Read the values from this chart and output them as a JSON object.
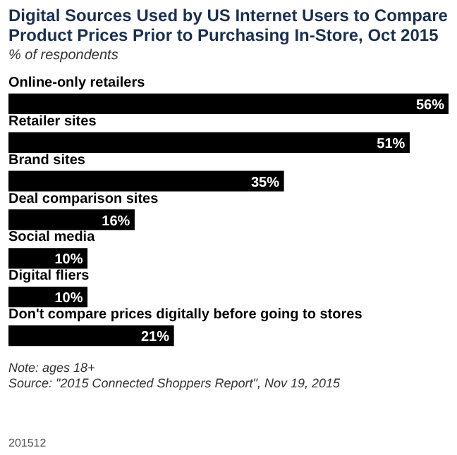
{
  "chart_data": {
    "type": "bar",
    "orientation": "horizontal",
    "title": "Digital Sources Used by US Internet Users to Compare Product Prices Prior to Purchasing In-Store, Oct 2015",
    "subtitle": "% of respondents",
    "categories": [
      "Online-only retailers",
      "Retailer sites",
      "Brand sites",
      "Deal comparison sites",
      "Social media",
      "Digital fliers",
      "Don't compare prices digitally before going to stores"
    ],
    "values": [
      56,
      51,
      35,
      16,
      10,
      10,
      21
    ],
    "value_labels": [
      "56%",
      "51%",
      "35%",
      "16%",
      "10%",
      "10%",
      "21%"
    ],
    "color": "#000000",
    "annotations": [
      "Note: ages 18+",
      "Source: \"2015 Connected Shoppers Report\", Nov 19, 2015",
      "201512"
    ]
  }
}
